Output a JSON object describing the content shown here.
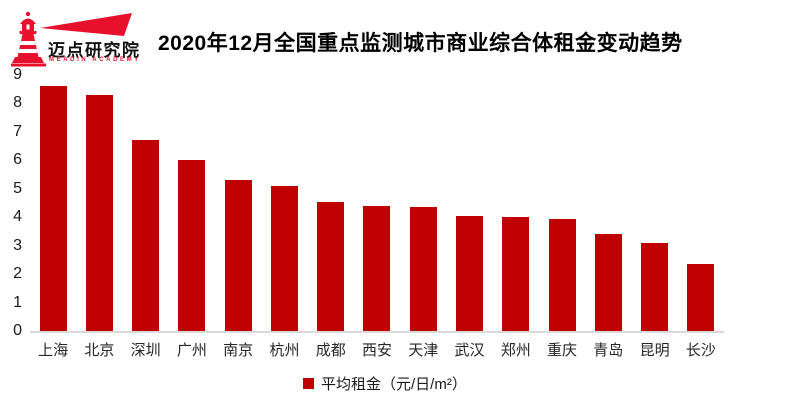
{
  "logo": {
    "name": "迈点研究院",
    "subtitle": "MEADIN ACADEMY",
    "brand_color": "#e8112d"
  },
  "header": {
    "title": "2020年12月全国重点监测城市商业综合体租金变动趋势"
  },
  "chart_data": {
    "type": "bar",
    "title": "2020年12月全国重点监测城市商业综合体租金变动趋势",
    "categories": [
      "上海",
      "北京",
      "深圳",
      "广州",
      "南京",
      "杭州",
      "成都",
      "西安",
      "天津",
      "武汉",
      "郑州",
      "重庆",
      "青岛",
      "昆明",
      "长沙"
    ],
    "values": [
      8.6,
      8.3,
      6.7,
      6.0,
      5.3,
      5.1,
      4.55,
      4.4,
      4.35,
      4.05,
      4.0,
      3.95,
      3.4,
      3.1,
      2.35
    ],
    "series_name": "平均租金",
    "legend": [
      "平均租金（元/日/m²）"
    ],
    "legend_position": "bottom",
    "xlabel": "",
    "ylabel": "",
    "ylim": [
      0,
      9
    ],
    "yticks": [
      0,
      1,
      2,
      3,
      4,
      5,
      6,
      7,
      8,
      9
    ],
    "grid": false,
    "bar_color": "#c00000",
    "axis_line_color": "#d9d9d9"
  }
}
